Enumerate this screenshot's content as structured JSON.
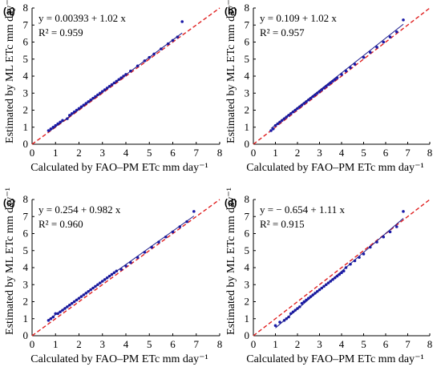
{
  "chart_data": [
    {
      "type": "scatter",
      "panel_label": "(a)",
      "equation": "y = 0.00393 + 1.02 x",
      "r2": "R² = 0.959",
      "fit": {
        "intercept": 0.00393,
        "slope": 1.02
      },
      "xlabel": "Calculated by FAO–PM ETc mm day⁻¹",
      "ylabel": "Estimated by ML ETc mm day⁻¹",
      "xlim": [
        0,
        8
      ],
      "ylim": [
        0,
        8
      ],
      "xticks": [
        "0",
        "1",
        "2",
        "3",
        "4",
        "5",
        "6",
        "7",
        "8"
      ],
      "yticks": [
        "0",
        "1",
        "2",
        "3",
        "4",
        "5",
        "6",
        "7",
        "8"
      ],
      "x": [
        0.7,
        0.8,
        0.9,
        1.0,
        1.1,
        1.2,
        1.3,
        1.5,
        1.6,
        1.7,
        1.8,
        1.9,
        2.0,
        2.1,
        2.2,
        2.3,
        2.4,
        2.5,
        2.6,
        2.7,
        2.8,
        2.9,
        3.0,
        3.1,
        3.2,
        3.3,
        3.4,
        3.5,
        3.6,
        3.7,
        3.8,
        3.9,
        4.0,
        4.2,
        4.5,
        4.8,
        5.0,
        5.2,
        5.5,
        5.8,
        6.0,
        6.2,
        6.4
      ],
      "y": [
        0.8,
        0.9,
        1.0,
        1.1,
        1.2,
        1.3,
        1.4,
        1.5,
        1.7,
        1.8,
        1.9,
        2.0,
        2.1,
        2.2,
        2.3,
        2.4,
        2.5,
        2.6,
        2.7,
        2.8,
        2.9,
        3.0,
        3.1,
        3.2,
        3.3,
        3.4,
        3.5,
        3.6,
        3.7,
        3.8,
        3.9,
        4.0,
        4.1,
        4.3,
        4.6,
        4.9,
        5.1,
        5.3,
        5.6,
        5.9,
        6.1,
        6.3,
        7.2
      ]
    },
    {
      "type": "scatter",
      "panel_label": "(b)",
      "equation": "y = 0.109 + 1.02 x",
      "r2": "R² = 0.957",
      "fit": {
        "intercept": 0.109,
        "slope": 1.02
      },
      "xlabel": "Calculated by FAO–PM ETc mm day⁻¹",
      "ylabel": "Estimated by ML ETc mm day⁻¹",
      "xlim": [
        0,
        8
      ],
      "ylim": [
        0,
        8
      ],
      "xticks": [
        "0",
        "1",
        "2",
        "3",
        "4",
        "5",
        "6",
        "7",
        "8"
      ],
      "yticks": [
        "0",
        "1",
        "2",
        "3",
        "4",
        "5",
        "6",
        "7",
        "8"
      ],
      "x": [
        0.8,
        0.9,
        1.0,
        1.1,
        1.2,
        1.3,
        1.4,
        1.5,
        1.6,
        1.7,
        1.8,
        1.9,
        2.0,
        2.1,
        2.2,
        2.3,
        2.4,
        2.5,
        2.6,
        2.7,
        2.8,
        2.9,
        3.0,
        3.1,
        3.2,
        3.3,
        3.4,
        3.5,
        3.6,
        3.7,
        3.8,
        4.0,
        4.2,
        4.4,
        4.6,
        5.0,
        5.3,
        5.6,
        5.9,
        6.2,
        6.5,
        6.8
      ],
      "y": [
        0.8,
        0.9,
        1.1,
        1.2,
        1.3,
        1.4,
        1.5,
        1.6,
        1.7,
        1.8,
        1.9,
        2.0,
        2.1,
        2.2,
        2.3,
        2.4,
        2.5,
        2.6,
        2.7,
        2.8,
        2.9,
        3.0,
        3.1,
        3.2,
        3.3,
        3.4,
        3.5,
        3.6,
        3.7,
        3.8,
        3.9,
        4.1,
        4.3,
        4.5,
        4.7,
        5.1,
        5.4,
        5.7,
        6.0,
        6.3,
        6.6,
        7.3
      ]
    },
    {
      "type": "scatter",
      "panel_label": "(c)",
      "equation": "y = 0.254 + 0.982 x",
      "r2": "R² = 0.960",
      "fit": {
        "intercept": 0.254,
        "slope": 0.982
      },
      "xlabel": "Calculated by FAO–PM ETc mm day⁻¹",
      "ylabel": "Estimated by ML ETc mm day⁻¹",
      "xlim": [
        0,
        8
      ],
      "ylim": [
        0,
        8
      ],
      "xticks": [
        "0",
        "1",
        "2",
        "3",
        "4",
        "5",
        "6",
        "7",
        "8"
      ],
      "yticks": [
        "0",
        "1",
        "2",
        "3",
        "4",
        "5",
        "6",
        "7",
        "8"
      ],
      "x": [
        0.7,
        0.8,
        0.9,
        1.0,
        1.1,
        1.2,
        1.3,
        1.4,
        1.5,
        1.6,
        1.7,
        1.8,
        1.9,
        2.0,
        2.1,
        2.2,
        2.3,
        2.4,
        2.5,
        2.6,
        2.7,
        2.8,
        2.9,
        3.0,
        3.1,
        3.2,
        3.3,
        3.4,
        3.5,
        3.6,
        3.8,
        4.0,
        4.2,
        4.5,
        4.8,
        5.1,
        5.4,
        5.7,
        6.0,
        6.3,
        6.6,
        6.9
      ],
      "y": [
        0.9,
        1.0,
        1.1,
        1.3,
        1.3,
        1.4,
        1.5,
        1.6,
        1.7,
        1.8,
        1.9,
        2.0,
        2.1,
        2.2,
        2.3,
        2.4,
        2.5,
        2.6,
        2.7,
        2.8,
        2.9,
        3.0,
        3.1,
        3.2,
        3.3,
        3.4,
        3.5,
        3.6,
        3.7,
        3.8,
        3.9,
        4.1,
        4.3,
        4.6,
        4.9,
        5.2,
        5.5,
        5.8,
        6.1,
        6.4,
        6.7,
        7.3
      ]
    },
    {
      "type": "scatter",
      "panel_label": "(d)",
      "equation": "y = − 0.654 + 1.11 x",
      "r2": "R² = 0.915",
      "fit": {
        "intercept": -0.654,
        "slope": 1.11
      },
      "xlabel": "Calculated by FAO–PM ETc mm day⁻¹",
      "ylabel": "Estimated by ML ETc mm day⁻¹",
      "xlim": [
        0,
        8
      ],
      "ylim": [
        0,
        8
      ],
      "xticks": [
        "0",
        "1",
        "2",
        "3",
        "4",
        "5",
        "6",
        "7",
        "8"
      ],
      "yticks": [
        "0",
        "1",
        "2",
        "3",
        "4",
        "5",
        "6",
        "7",
        "8"
      ],
      "x": [
        1.0,
        1.2,
        1.4,
        1.5,
        1.6,
        1.7,
        1.8,
        1.9,
        2.0,
        2.1,
        2.2,
        2.3,
        2.4,
        2.5,
        2.6,
        2.7,
        2.8,
        2.9,
        3.0,
        3.1,
        3.2,
        3.3,
        3.4,
        3.5,
        3.6,
        3.7,
        3.8,
        3.9,
        4.0,
        4.1,
        4.2,
        4.4,
        4.6,
        4.8,
        5.0,
        5.3,
        5.6,
        5.9,
        6.2,
        6.5,
        6.8
      ],
      "y": [
        0.6,
        0.8,
        0.9,
        1.0,
        1.1,
        1.3,
        1.4,
        1.5,
        1.6,
        1.7,
        1.9,
        2.0,
        2.1,
        2.2,
        2.3,
        2.4,
        2.5,
        2.6,
        2.7,
        2.8,
        2.9,
        3.0,
        3.1,
        3.2,
        3.3,
        3.4,
        3.5,
        3.6,
        3.7,
        3.8,
        4.0,
        4.2,
        4.4,
        4.6,
        4.8,
        5.2,
        5.5,
        5.8,
        6.1,
        6.4,
        7.3
      ]
    }
  ],
  "colors": {
    "points": "#1a1aa8",
    "fit_line": "#1a1a8c",
    "one_to_one": "#e02020",
    "axis": "#000000"
  }
}
